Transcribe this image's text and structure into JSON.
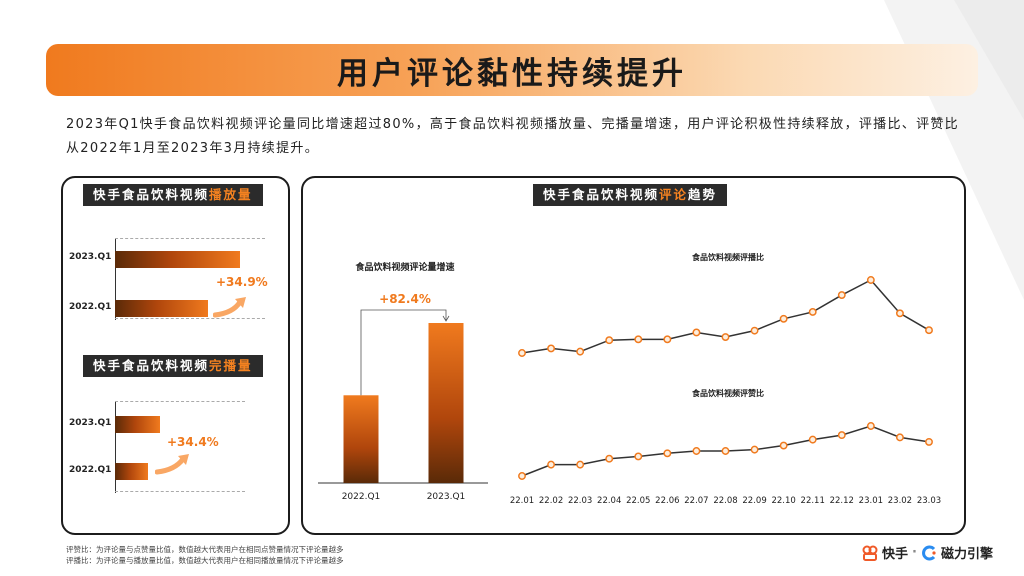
{
  "title": "用户评论黏性持续提升",
  "intro": "2023年Q1快手食品饮料视频评论量同比增速超过80%，高于食品饮料视频播放量、完播量增速，用户评论积极性持续释放，评播比、评赞比从2022年1月至2023年3月持续提升。",
  "left_panel": {
    "play_tag": {
      "prefix": "快手食品饮料视频",
      "highlight": "播放量"
    },
    "complete_tag": {
      "prefix": "快手食品饮料视频",
      "highlight": "完播量"
    }
  },
  "right_panel": {
    "tag": {
      "prefix": "快手食品饮料视频",
      "highlight": "评论",
      "suffix": "趋势"
    }
  },
  "chart_data": [
    {
      "type": "bar",
      "orientation": "horizontal",
      "title": "快手食品饮料视频播放量",
      "categories": [
        "2023.Q1",
        "2022.Q1"
      ],
      "values": [
        1.349,
        1.0
      ],
      "annotation": "+34.9%"
    },
    {
      "type": "bar",
      "orientation": "horizontal",
      "title": "快手食品饮料视频完播量",
      "categories": [
        "2023.Q1",
        "2022.Q1"
      ],
      "values": [
        1.344,
        1.0
      ],
      "annotation": "+34.4%"
    },
    {
      "type": "bar",
      "title": "食品饮料视频评论量增速",
      "categories": [
        "2022.Q1",
        "2023.Q1"
      ],
      "values": [
        1.0,
        1.824
      ],
      "annotation": "+82.4%"
    },
    {
      "type": "line",
      "title": "食品饮料视频评播比",
      "x": [
        "22.01",
        "22.02",
        "22.03",
        "22.04",
        "22.05",
        "22.06",
        "22.07",
        "22.08",
        "22.09",
        "22.10",
        "22.11",
        "22.12",
        "23.01",
        "23.02",
        "23.03"
      ],
      "values": [
        0.6,
        0.7,
        0.63,
        0.88,
        0.9,
        0.9,
        1.05,
        0.95,
        1.09,
        1.35,
        1.5,
        1.87,
        2.2,
        1.47,
        1.1
      ]
    },
    {
      "type": "line",
      "title": "食品饮料视频评赞比",
      "x": [
        "22.01",
        "22.02",
        "22.03",
        "22.04",
        "22.05",
        "22.06",
        "22.07",
        "22.08",
        "22.09",
        "22.10",
        "22.11",
        "22.12",
        "23.01",
        "23.02",
        "23.03"
      ],
      "values": [
        0.3,
        0.55,
        0.55,
        0.68,
        0.73,
        0.8,
        0.85,
        0.85,
        0.88,
        0.97,
        1.1,
        1.2,
        1.4,
        1.15,
        1.05
      ]
    }
  ],
  "footnotes": [
    "评赞比：为评论量与点赞量比值，数值越大代表用户在相同点赞量情况下评论量越多",
    "评播比：为评论量与播放量比值，数值越大代表用户在相同播放量情况下评论量越多"
  ],
  "brand": {
    "kuaishou": "快手",
    "separator": "·",
    "cili": "磁力引擎"
  },
  "colors": {
    "accent": "#f07a1e",
    "dark": "#2b2b2b",
    "line": "#333333",
    "marker_fill": "#fdeede"
  }
}
